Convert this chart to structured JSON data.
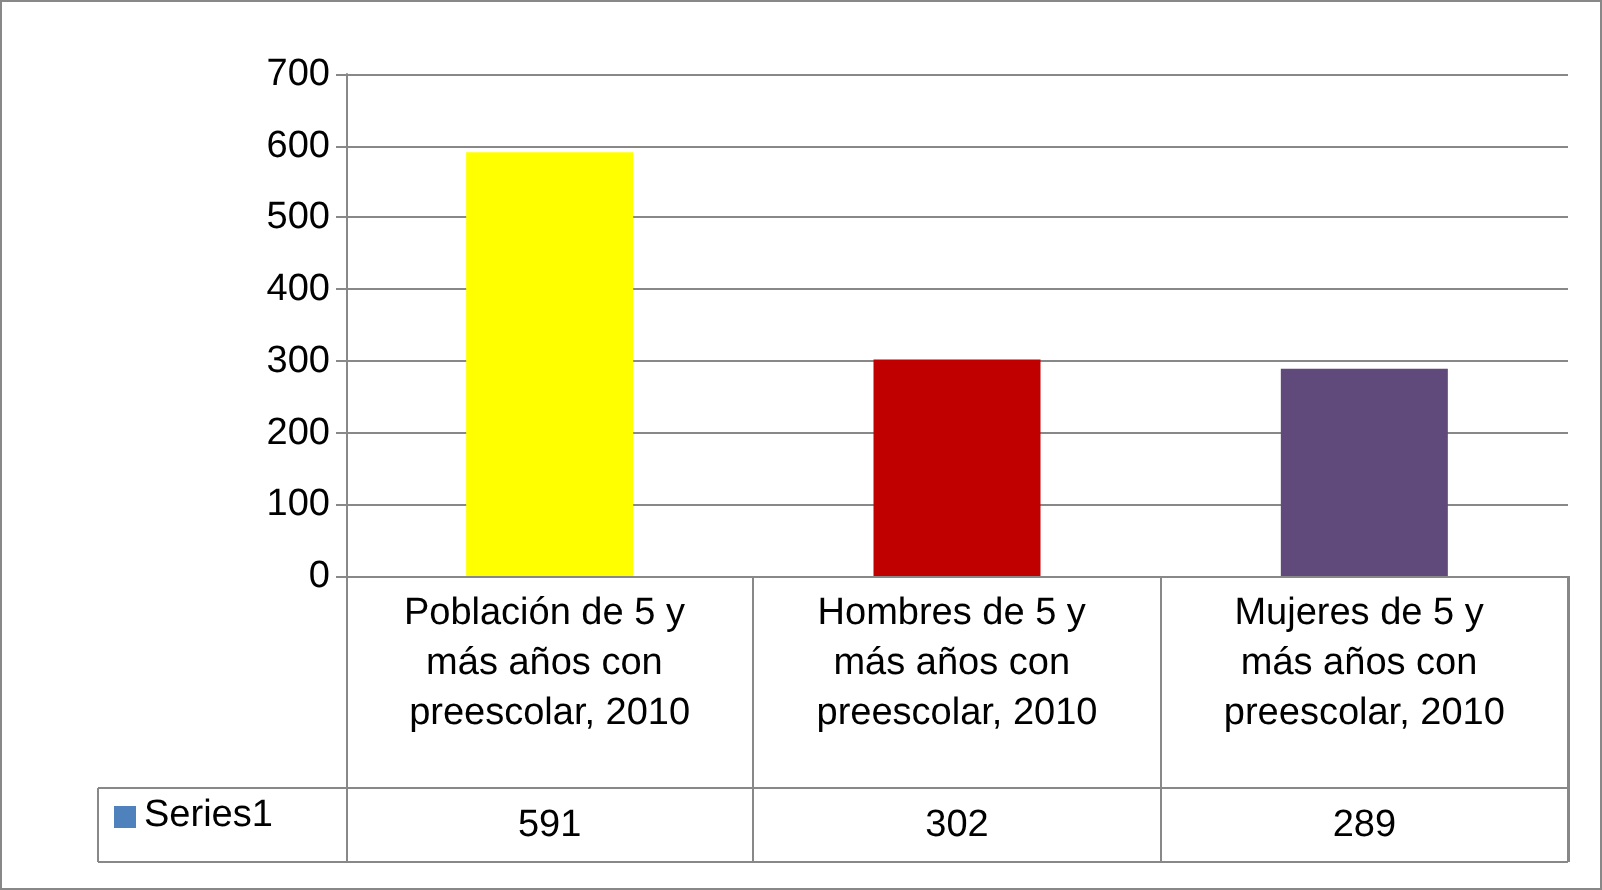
{
  "chart_data": {
    "type": "bar",
    "categories": [
      "Población de 5 y más años con preescolar, 2010",
      "Hombres de 5 y más años con preescolar, 2010",
      "Mujeres de 5 y más años con preescolar, 2010"
    ],
    "series": [
      {
        "name": "Series1",
        "color": "#4f81bd",
        "colors": [
          "#ffff00",
          "#c00000",
          "#604a7b"
        ],
        "values": [
          591,
          302,
          289
        ]
      }
    ],
    "ylim": [
      0,
      700
    ],
    "yticks": [
      0,
      100,
      200,
      300,
      400,
      500,
      600,
      700
    ],
    "grid": "y",
    "legend": "bottom left",
    "data_labels": true
  }
}
